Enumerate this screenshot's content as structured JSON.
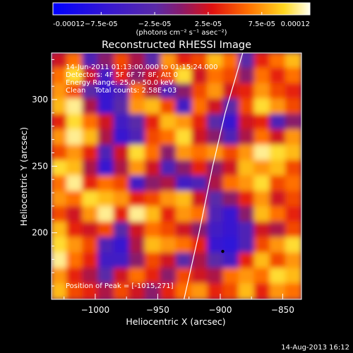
{
  "chart_data": {
    "type": "heatmap",
    "title": "Reconstructed RHESSI Image",
    "xlabel": "Heliocentric X (arcsec)",
    "ylabel": "Heliocentric Y (arcsec)",
    "xlim": [
      -1035,
      -835
    ],
    "ylim": [
      150,
      335
    ],
    "xticks": [
      -1000,
      -950,
      -900,
      -850
    ],
    "xtick_labels": [
      "−1000",
      "−950",
      "−900",
      "−850"
    ],
    "yticks": [
      200,
      250,
      300
    ],
    "ytick_labels": [
      "200",
      "250",
      "300"
    ],
    "colorbar": {
      "min": -0.00012,
      "max": 0.00012,
      "colormap": "blue-purple-red-yellow-white",
      "ticks": [
        -0.00012,
        -7.5e-05,
        -2.5e-05,
        2.5e-05,
        7.5e-05,
        0.00012
      ],
      "tick_labels": [
        "-0.00012",
        "−7.5e-05",
        "−2.5e-05",
        "2.5e-05",
        "7.5e-05",
        "0.00012"
      ],
      "units_text": "(photons cm⁻² s⁻¹ asec⁻²)"
    },
    "info_lines": [
      "14-Jun-2011 01:13:00.000 to 01:15:24.000",
      "Detectors: 4F 5F 6F 7F 8F, Att 0",
      "Energy Range: 25.0 - 50.0 keV",
      "Clean    Total counts: 2.58E+03"
    ],
    "peak_label": "Position of Peak = [-1015,271]",
    "peak_position": {
      "x": -1015,
      "y": 271
    },
    "marked_point": {
      "x": -898,
      "y": 186
    },
    "limb_curve": [
      {
        "x": -929,
        "y": 150
      },
      {
        "x": -917,
        "y": 200
      },
      {
        "x": -906,
        "y": 250
      },
      {
        "x": -896,
        "y": 290
      },
      {
        "x": -882,
        "y": 335
      }
    ],
    "grid_levels": [
      [
        0.2,
        0.5,
        -0.3,
        0.0,
        0.4,
        0.1,
        -0.2,
        0.6,
        0.3,
        0.4,
        0.7,
        0.5,
        -0.2,
        0.3,
        0.5,
        0.7
      ],
      [
        0.5,
        0.8,
        0.2,
        -0.4,
        0.3,
        0.0,
        0.2,
        0.4,
        0.8,
        0.2,
        0.5,
        0.4,
        0.0,
        0.5,
        0.3,
        0.5
      ],
      [
        0.6,
        0.4,
        -0.2,
        -0.5,
        -0.3,
        0.5,
        0.1,
        -0.3,
        0.0,
        0.4,
        0.6,
        0.2,
        0.3,
        0.6,
        0.4,
        0.3
      ],
      [
        0.7,
        0.9,
        0.1,
        -0.5,
        -0.2,
        0.6,
        0.7,
        0.4,
        -0.4,
        0.5,
        0.2,
        -0.2,
        0.4,
        0.8,
        0.6,
        0.4
      ],
      [
        0.3,
        0.8,
        0.5,
        0.2,
        -0.4,
        -0.2,
        0.3,
        0.7,
        0.6,
        0.3,
        -0.2,
        -0.5,
        0.2,
        0.3,
        -0.3,
        0.0
      ],
      [
        0.6,
        0.9,
        0.7,
        0.1,
        -0.5,
        -0.3,
        0.4,
        0.5,
        0.8,
        0.2,
        0.0,
        -0.3,
        0.1,
        0.5,
        0.2,
        0.6
      ],
      [
        0.4,
        0.6,
        0.3,
        -0.3,
        0.2,
        0.8,
        0.5,
        0.0,
        0.6,
        0.5,
        0.6,
        0.4,
        0.6,
        0.9,
        0.8,
        0.7
      ],
      [
        0.8,
        0.7,
        0.1,
        -0.5,
        0.1,
        0.6,
        0.2,
        -0.3,
        0.0,
        0.3,
        0.0,
        0.2,
        0.7,
        0.6,
        0.7,
        0.4
      ],
      [
        0.5,
        0.9,
        0.3,
        0.5,
        0.4,
        -0.4,
        0.0,
        0.1,
        -0.4,
        -0.3,
        0.1,
        0.5,
        0.6,
        0.8,
        0.4,
        0.5
      ],
      [
        0.6,
        0.5,
        0.8,
        0.7,
        0.6,
        0.3,
        0.4,
        0.6,
        0.7,
        0.2,
        -0.2,
        0.0,
        0.3,
        0.6,
        0.2,
        0.4
      ],
      [
        0.4,
        0.2,
        0.6,
        0.9,
        0.3,
        0.9,
        0.7,
        0.3,
        0.6,
        0.5,
        -0.3,
        -0.5,
        0.0,
        0.7,
        0.5,
        0.3
      ],
      [
        0.7,
        0.3,
        0.2,
        0.4,
        -0.2,
        0.2,
        0.5,
        0.4,
        0.2,
        0.0,
        -0.4,
        -0.5,
        -0.3,
        0.2,
        0.1,
        0.4
      ],
      [
        0.8,
        0.6,
        0.4,
        -0.3,
        -0.5,
        0.1,
        0.7,
        0.6,
        0.5,
        0.3,
        -0.5,
        -0.6,
        -0.3,
        0.4,
        0.6,
        0.8
      ],
      [
        0.9,
        0.5,
        0.3,
        -0.4,
        -0.4,
        0.0,
        0.4,
        0.2,
        -0.2,
        0.1,
        -0.2,
        -0.4,
        0.3,
        0.7,
        0.4,
        0.6
      ],
      [
        0.6,
        0.3,
        0.1,
        -0.2,
        0.2,
        0.5,
        0.3,
        0.0,
        0.4,
        0.2,
        0.1,
        0.5,
        0.6,
        0.5,
        0.8,
        0.7
      ],
      [
        0.7,
        0.4,
        0.3,
        0.1,
        0.4,
        0.2,
        0.0,
        0.3,
        0.5,
        0.6,
        0.3,
        0.4,
        0.7,
        0.3,
        0.6,
        0.5
      ]
    ]
  },
  "footer_date": "14-Aug-2013 16:12"
}
